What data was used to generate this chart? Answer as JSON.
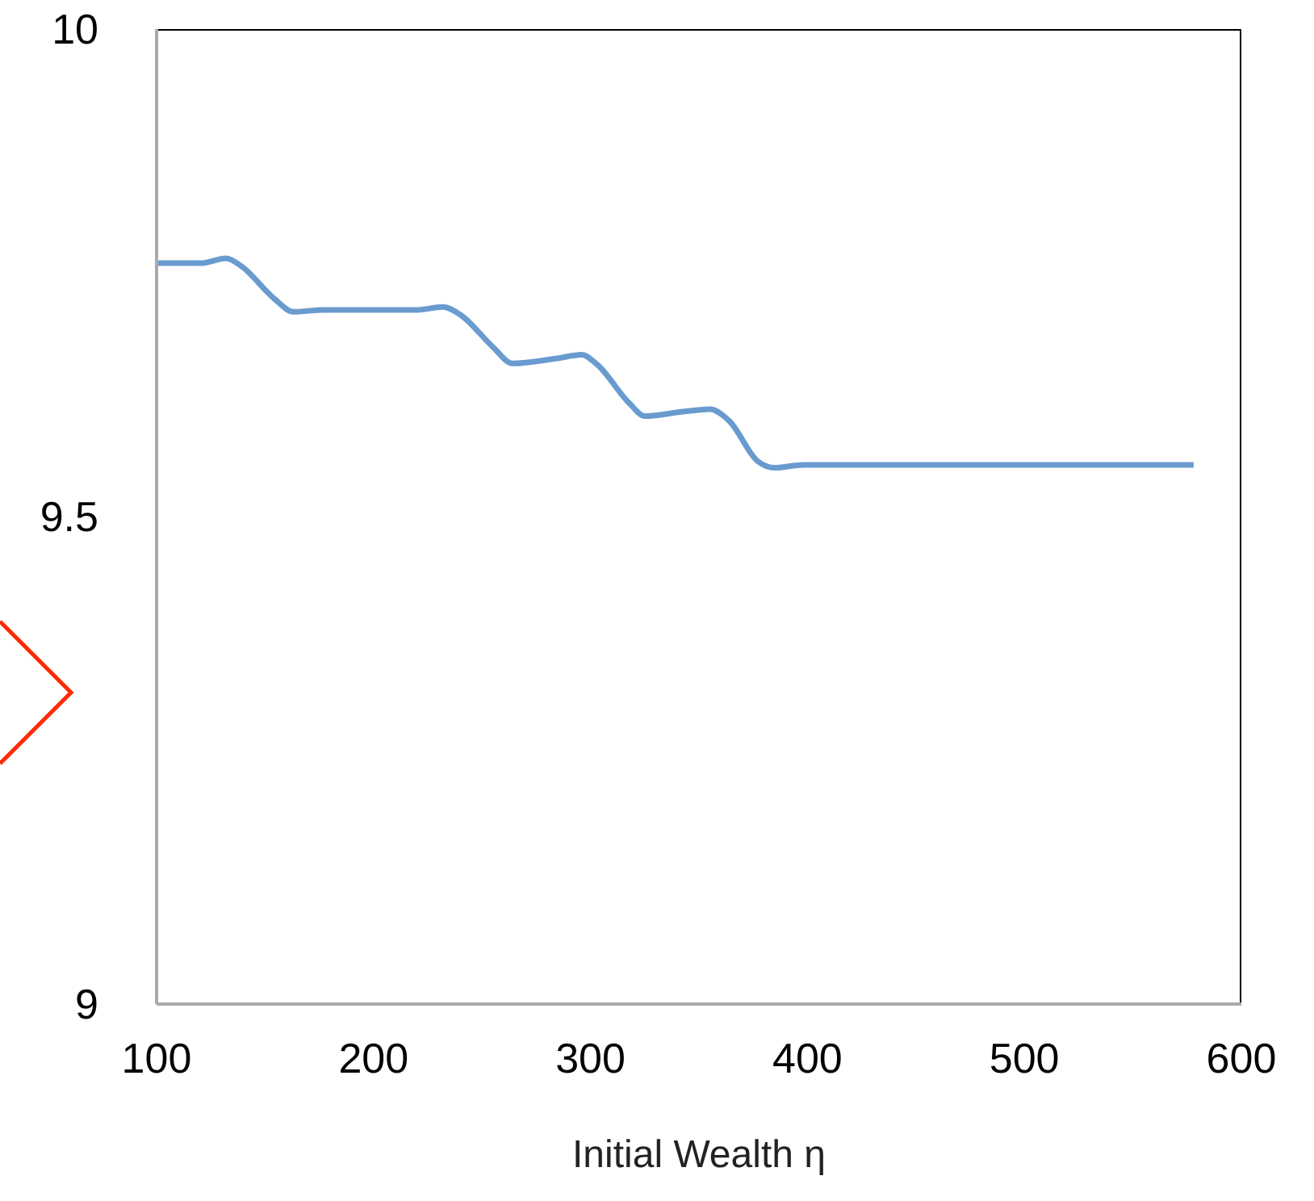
{
  "chart_data": {
    "type": "line",
    "xlabel": "Initial Wealth η",
    "x": [
      100,
      121,
      132,
      139,
      154,
      163,
      177,
      220,
      232,
      240,
      255,
      264,
      284,
      296,
      303,
      318,
      325,
      344,
      355,
      364,
      377,
      385,
      398,
      578
    ],
    "series": [
      {
        "color": "#6a9bcf",
        "values": [
          9.76,
          9.76,
          9.765,
          9.757,
          9.724,
          9.71,
          9.712,
          9.712,
          9.715,
          9.707,
          9.674,
          9.657,
          9.662,
          9.666,
          9.656,
          9.616,
          9.603,
          9.608,
          9.61,
          9.598,
          9.557,
          9.55,
          9.553,
          9.553
        ]
      }
    ],
    "xlim": [
      100,
      600
    ],
    "xticks": [
      100,
      200,
      300,
      400,
      500,
      600
    ],
    "ylim": [
      9,
      10
    ],
    "yticks": [
      9,
      9.5,
      10
    ],
    "grid": false,
    "legend": false,
    "marker": "none",
    "line_style": "solid"
  }
}
